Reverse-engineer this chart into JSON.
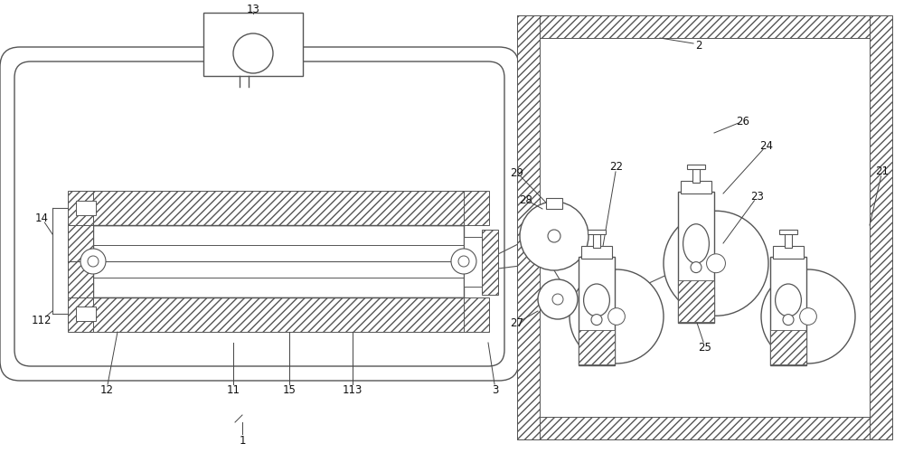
{
  "bg": "#ffffff",
  "lc": "#555555",
  "figsize": [
    10.0,
    5.02
  ],
  "dpi": 100,
  "lw": 1.0
}
